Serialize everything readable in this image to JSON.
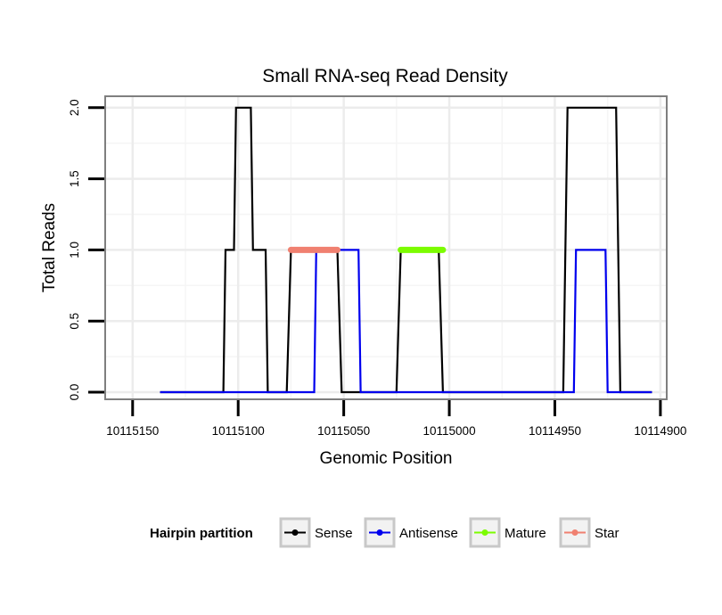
{
  "chart_data": {
    "type": "line",
    "title": "Small RNA-seq Read Density",
    "xlabel": "Genomic Position",
    "ylabel": "Total Reads",
    "x_reversed": true,
    "xlim": [
      10115163,
      10114897
    ],
    "ylim": [
      -0.05,
      2.08
    ],
    "xticks": [
      10115150,
      10115100,
      10115050,
      10115000,
      10114950,
      10114900
    ],
    "xtick_labels": [
      "10115150",
      "10115100",
      "10115050",
      "10115000",
      "10114950",
      "10114900"
    ],
    "yticks": [
      0,
      0.5,
      1,
      1.5,
      2
    ],
    "ytick_labels": [
      "0.0",
      "0.5",
      "1.0",
      "1.5",
      "2.0"
    ],
    "grid": true,
    "series": [
      {
        "name": "Sense",
        "color": "#000000",
        "x": [
          10115137,
          10115107,
          10115106,
          10115102,
          10115101,
          10115094,
          10115093,
          10115087,
          10115086,
          10115083,
          10115077,
          10115075,
          10115053,
          10115051,
          10115025,
          10115023,
          10115005,
          10115003,
          10114946,
          10114944,
          10114921,
          10114919,
          10114904
        ],
        "y": [
          0,
          0,
          1,
          1,
          2,
          2,
          1,
          1,
          0,
          0,
          0,
          1,
          1,
          0,
          0,
          1,
          1,
          0,
          0,
          2,
          2,
          0,
          0
        ]
      },
      {
        "name": "Antisense",
        "color": "#0000ee",
        "x": [
          10115137,
          10115077,
          10115076,
          10115064,
          10115063,
          10115043,
          10115042,
          10115025,
          10115024,
          10115003,
          10114944,
          10114943,
          10114941,
          10114940,
          10114926,
          10114925,
          10114904
        ],
        "y": [
          0,
          0,
          0,
          0,
          1,
          1,
          0,
          0,
          0,
          0,
          0,
          0,
          0,
          1,
          1,
          0,
          0
        ]
      },
      {
        "name": "Mature",
        "color": "#7cfc00",
        "x": [
          10115023,
          10115003
        ],
        "y": [
          1,
          1
        ]
      },
      {
        "name": "Star",
        "color": "#f08070",
        "x": [
          10115075,
          10115053
        ],
        "y": [
          1,
          1
        ]
      }
    ],
    "legend": {
      "title": "Hairpin partition",
      "position": "bottom",
      "items": [
        "Sense",
        "Antisense",
        "Mature",
        "Star"
      ]
    }
  }
}
